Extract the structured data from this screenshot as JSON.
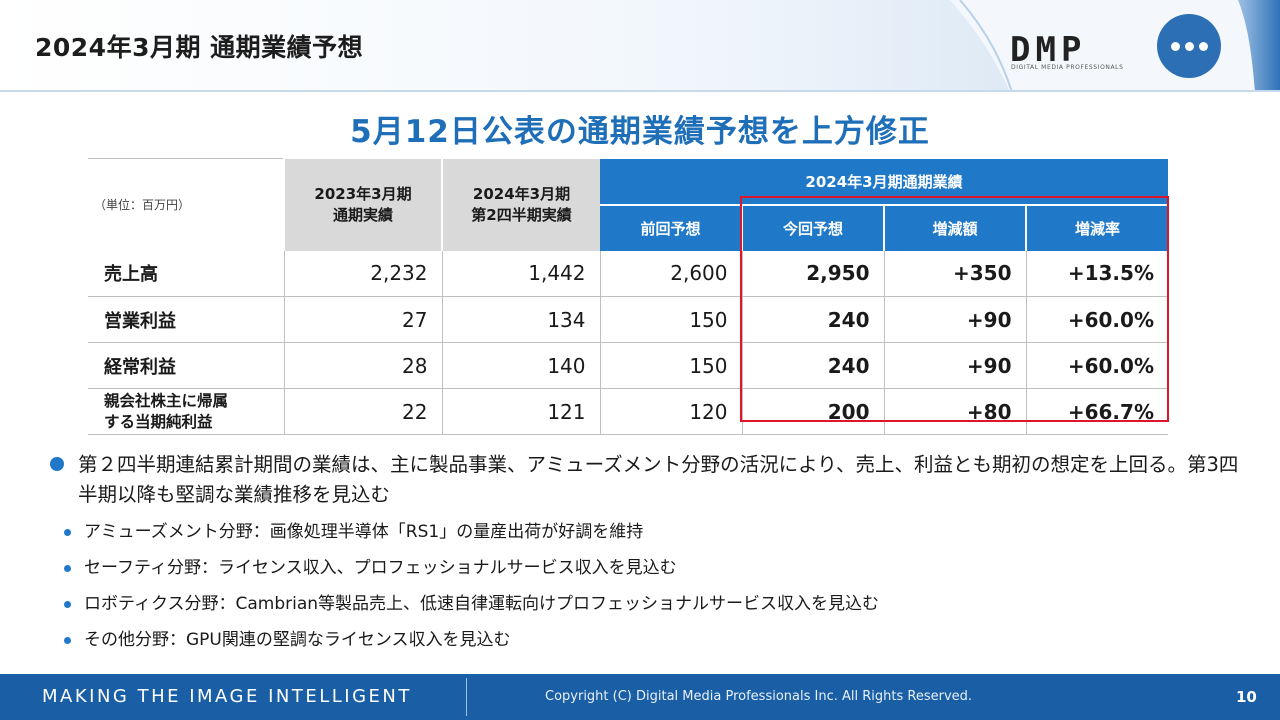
{
  "header": {
    "title": "2024年3月期 通期業績予想",
    "logo_text": "DMP",
    "logo_sub": "DIGITAL MEDIA PROFESSIONALS"
  },
  "headline": "5月12日公表の通期業績予想を上方修正",
  "table": {
    "unit_label": "（単位：百万円）",
    "col_fy2023": "2023年3月期\n通期実績",
    "col_h1_2024": "2024年3月期\n第2四半期実績",
    "group_header": "2024年3月期通期業績",
    "sub_headers": [
      "前回予想",
      "今回予想",
      "増減額",
      "増減率"
    ],
    "rows": [
      {
        "label": "売上高",
        "values": [
          "2,232",
          "1,442",
          "2,600",
          "2,950",
          "+350",
          "+13.5%"
        ]
      },
      {
        "label": "営業利益",
        "values": [
          "27",
          "134",
          "150",
          "240",
          "+90",
          "+60.0%"
        ]
      },
      {
        "label": "経常利益",
        "values": [
          "28",
          "140",
          "150",
          "240",
          "+90",
          "+60.0%"
        ]
      },
      {
        "label": "親会社株主に帰属\nする当期純利益",
        "values": [
          "22",
          "121",
          "120",
          "200",
          "+80",
          "+66.7%"
        ]
      }
    ]
  },
  "bullets": {
    "main": "第２四半期連結累計期間の業績は、主に製品事業、アミューズメント分野の活況により、売上、利益とも期初の想定を上回る。第3四半期以降も堅調な業績推移を見込む",
    "subs": [
      "アミューズメント分野：画像処理半導体「RS1」の量産出荷が好調を維持",
      "セーフティ分野：ライセンス収入、プロフェッショナルサービス収入を見込む",
      "ロボティクス分野：Cambrian等製品売上、低速自律運転向けプロフェッショナルサービス収入を見込む",
      "その他分野：GPU関連の堅調なライセンス収入を見込む"
    ]
  },
  "footer": {
    "tagline": "MAKING THE IMAGE INTELLIGENT",
    "copyright": "Copyright (C) Digital Media Professionals Inc. All Rights Reserved.",
    "page_number": "10"
  },
  "colors": {
    "accent_blue": "#1f78c8",
    "headline_blue": "#1f6fb8",
    "footer_blue": "#1a5fa6",
    "highlight_red": "#e0142a",
    "header_grey": "#d9d9d9"
  }
}
